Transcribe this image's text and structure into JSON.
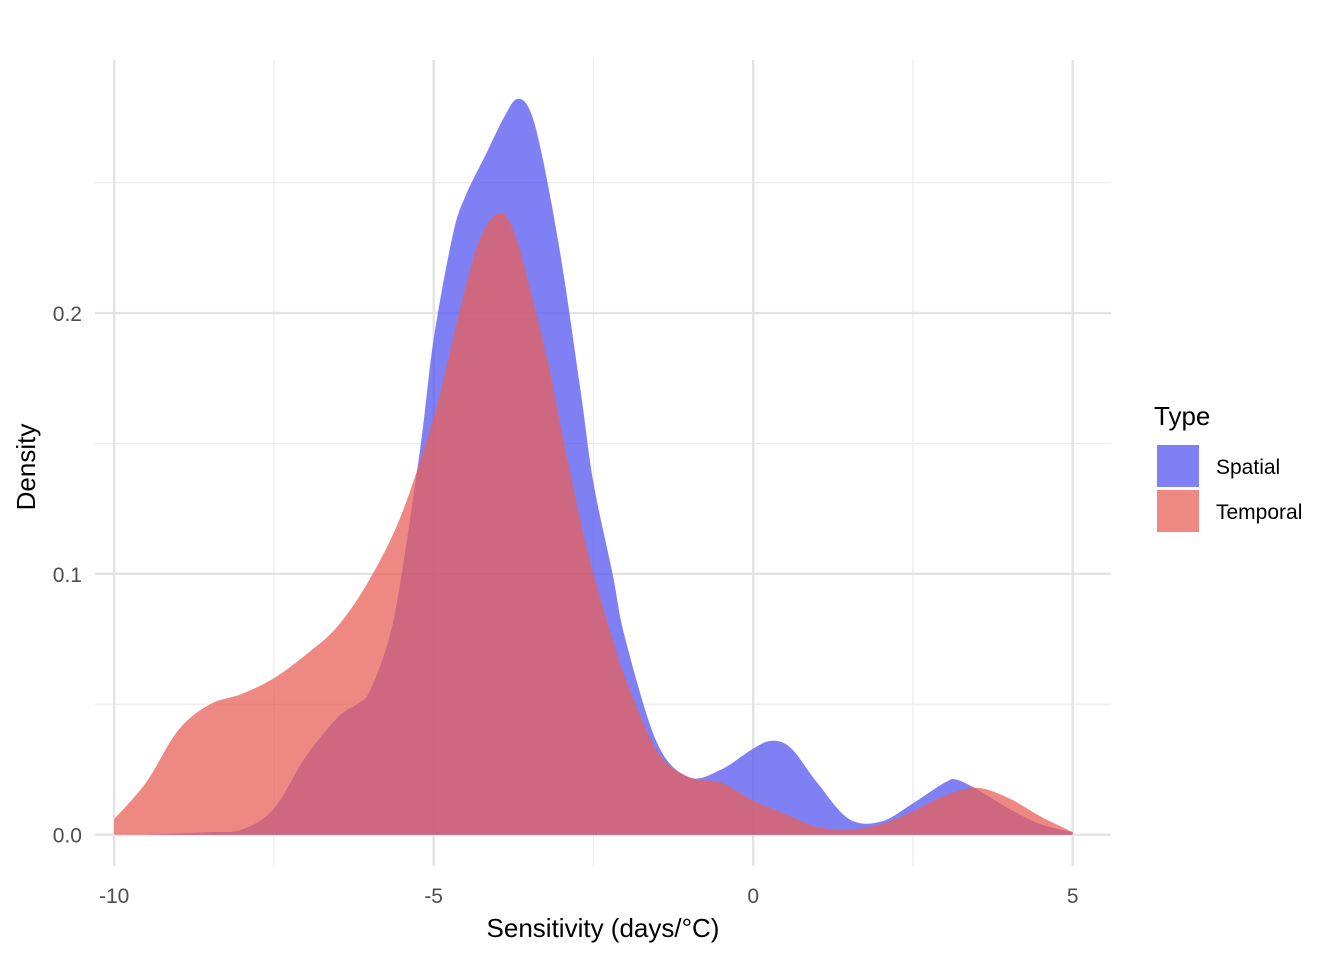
{
  "chart_data": {
    "type": "area",
    "subtype": "density",
    "title": "",
    "xlabel": "Sensitivity (days/°C)",
    "ylabel": "Density",
    "xlim": [
      -10.3,
      5.6
    ],
    "ylim": [
      -0.012,
      0.297
    ],
    "x_ticks": [
      -10,
      -5,
      0,
      5
    ],
    "x_tick_labels": [
      "-10",
      "-5",
      "0",
      "5"
    ],
    "x_minor_ticks": [
      -7.5,
      -2.5,
      2.5
    ],
    "y_ticks": [
      0.0,
      0.1,
      0.2
    ],
    "y_tick_labels": [
      "0.0",
      "0.1",
      "0.2"
    ],
    "y_minor_ticks": [
      0.05,
      0.15,
      0.25
    ],
    "grid": true,
    "legend": {
      "title": "Type",
      "position": "right"
    },
    "series": [
      {
        "name": "Spatial",
        "color": "#5555F2",
        "opacity": 0.75,
        "x": [
          -10.0,
          -9.5,
          -9.0,
          -8.5,
          -8.0,
          -7.5,
          -7.0,
          -6.5,
          -6.2,
          -6.0,
          -5.7,
          -5.5,
          -5.2,
          -5.0,
          -4.7,
          -4.5,
          -4.2,
          -3.9,
          -3.7,
          -3.5,
          -3.3,
          -3.0,
          -2.7,
          -2.5,
          -2.2,
          -2.0,
          -1.5,
          -1.0,
          -0.5,
          0.0,
          0.3,
          0.6,
          1.0,
          1.5,
          2.0,
          2.5,
          3.0,
          3.2,
          3.6,
          4.0,
          4.5,
          5.0
        ],
        "y": [
          0.0,
          0.0,
          0.0005,
          0.001,
          0.002,
          0.01,
          0.03,
          0.045,
          0.05,
          0.055,
          0.075,
          0.1,
          0.15,
          0.19,
          0.23,
          0.245,
          0.26,
          0.275,
          0.282,
          0.278,
          0.26,
          0.22,
          0.17,
          0.135,
          0.1,
          0.075,
          0.035,
          0.022,
          0.025,
          0.033,
          0.036,
          0.033,
          0.02,
          0.006,
          0.005,
          0.012,
          0.02,
          0.021,
          0.016,
          0.01,
          0.004,
          0.001
        ]
      },
      {
        "name": "Temporal",
        "color": "#E8605A",
        "opacity": 0.75,
        "x": [
          -10.0,
          -9.5,
          -9.0,
          -8.5,
          -8.0,
          -7.5,
          -7.0,
          -6.5,
          -6.0,
          -5.5,
          -5.0,
          -4.7,
          -4.5,
          -4.3,
          -4.1,
          -3.9,
          -3.7,
          -3.5,
          -3.2,
          -3.0,
          -2.7,
          -2.5,
          -2.2,
          -2.0,
          -1.5,
          -1.0,
          -0.5,
          0.0,
          0.5,
          1.0,
          1.5,
          2.0,
          2.5,
          3.0,
          3.5,
          4.0,
          4.5,
          5.0
        ],
        "y": [
          0.006,
          0.02,
          0.04,
          0.05,
          0.054,
          0.06,
          0.069,
          0.08,
          0.098,
          0.123,
          0.16,
          0.19,
          0.21,
          0.227,
          0.236,
          0.238,
          0.228,
          0.21,
          0.18,
          0.155,
          0.12,
          0.1,
          0.075,
          0.06,
          0.032,
          0.022,
          0.02,
          0.013,
          0.008,
          0.003,
          0.002,
          0.004,
          0.009,
          0.015,
          0.018,
          0.014,
          0.007,
          0.001
        ]
      }
    ]
  }
}
